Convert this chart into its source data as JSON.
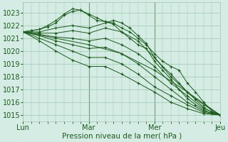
{
  "xlabel": "Pression niveau de la mer( hPa )",
  "ylim": [
    1014.5,
    1023.8
  ],
  "xlim": [
    0,
    72
  ],
  "yticks": [
    1015,
    1016,
    1017,
    1018,
    1019,
    1020,
    1021,
    1022,
    1023
  ],
  "xtick_positions": [
    0,
    24,
    48,
    72
  ],
  "xtick_labels": [
    "Lun",
    "Mar",
    "Mer",
    "Jeu"
  ],
  "bg_color": "#d4ece3",
  "grid_color": "#9ec4b0",
  "line_color": "#1a5c1a",
  "marker": "+",
  "lines": [
    [
      0,
      1021.5,
      3,
      1021.6,
      6,
      1021.7,
      9,
      1021.9,
      12,
      1022.2,
      15,
      1022.8,
      18,
      1023.1,
      21,
      1023.2,
      24,
      1022.9,
      27,
      1022.6,
      30,
      1022.3,
      33,
      1022.1,
      36,
      1021.5,
      39,
      1021.0,
      42,
      1020.5,
      45,
      1020.2,
      48,
      1019.2,
      51,
      1018.5,
      54,
      1017.8,
      57,
      1017.0,
      60,
      1016.3,
      63,
      1015.8,
      66,
      1015.4,
      69,
      1015.1,
      72,
      1015.0
    ],
    [
      0,
      1021.5,
      3,
      1021.6,
      6,
      1021.7,
      9,
      1022.0,
      12,
      1022.4,
      15,
      1022.9,
      18,
      1023.3,
      21,
      1023.2,
      24,
      1022.8,
      27,
      1022.4,
      30,
      1022.3,
      33,
      1022.2,
      36,
      1021.8,
      39,
      1021.5,
      42,
      1021.0,
      45,
      1020.5,
      48,
      1019.8,
      51,
      1019.2,
      54,
      1018.8,
      57,
      1018.5,
      60,
      1017.5,
      63,
      1016.8,
      66,
      1016.0,
      69,
      1015.3,
      72,
      1015.0
    ],
    [
      0,
      1021.5,
      6,
      1021.5,
      12,
      1021.8,
      18,
      1022.0,
      24,
      1021.8,
      30,
      1022.2,
      33,
      1022.4,
      36,
      1022.2,
      39,
      1021.8,
      42,
      1021.2,
      45,
      1020.6,
      48,
      1019.5,
      51,
      1018.8,
      54,
      1018.2,
      57,
      1017.5,
      60,
      1016.8,
      63,
      1016.2,
      66,
      1015.6,
      69,
      1015.2,
      72,
      1015.0
    ],
    [
      0,
      1021.5,
      6,
      1021.4,
      12,
      1021.4,
      18,
      1021.6,
      24,
      1021.4,
      30,
      1021.8,
      36,
      1021.5,
      42,
      1020.8,
      48,
      1019.5,
      54,
      1018.0,
      60,
      1016.8,
      66,
      1015.8,
      72,
      1015.0
    ],
    [
      0,
      1021.5,
      6,
      1021.3,
      12,
      1021.1,
      18,
      1021.0,
      24,
      1020.8,
      30,
      1021.0,
      36,
      1020.5,
      42,
      1019.8,
      48,
      1018.8,
      54,
      1017.5,
      60,
      1016.5,
      66,
      1015.5,
      72,
      1015.0
    ],
    [
      0,
      1021.5,
      6,
      1021.2,
      12,
      1020.8,
      18,
      1020.5,
      24,
      1020.2,
      30,
      1020.3,
      36,
      1019.8,
      42,
      1019.0,
      48,
      1018.0,
      54,
      1017.0,
      60,
      1016.0,
      66,
      1015.3,
      72,
      1015.0
    ],
    [
      0,
      1021.5,
      6,
      1021.0,
      12,
      1020.5,
      18,
      1020.0,
      24,
      1019.5,
      30,
      1019.5,
      36,
      1019.0,
      42,
      1018.2,
      48,
      1017.2,
      54,
      1016.5,
      60,
      1015.8,
      66,
      1015.2,
      72,
      1015.0
    ],
    [
      0,
      1021.5,
      6,
      1020.8,
      12,
      1020.0,
      18,
      1019.3,
      24,
      1018.8,
      30,
      1018.8,
      36,
      1018.2,
      42,
      1017.5,
      48,
      1016.8,
      54,
      1016.0,
      60,
      1015.5,
      66,
      1015.1,
      72,
      1015.0
    ],
    [
      0,
      1021.5,
      12,
      1021.0,
      24,
      1020.5,
      36,
      1019.8,
      48,
      1018.5,
      60,
      1016.8,
      72,
      1015.0
    ]
  ]
}
